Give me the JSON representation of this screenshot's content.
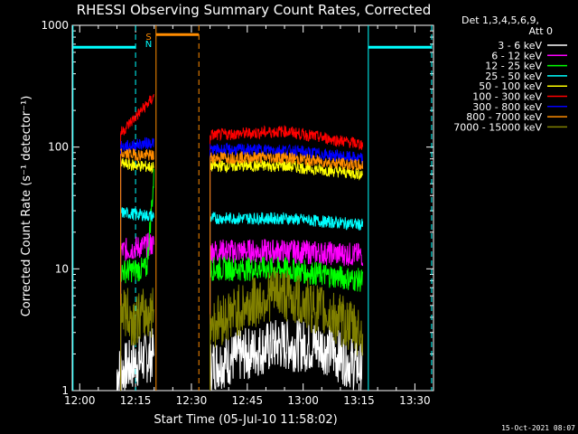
{
  "chart_data": {
    "type": "line",
    "title": "RHESSI Observing Summary Count Rates, Corrected",
    "xlabel": "Start Time (05-Jul-10 11:58:02)",
    "ylabel": "Corrected Count Rate (s⁻¹ detector⁻¹)",
    "ylog": true,
    "ylim": [
      1,
      1000
    ],
    "xlim_minutes_after_1158": [
      0,
      97
    ],
    "x_ticks": [
      "12:00",
      "12:15",
      "12:30",
      "12:45",
      "13:00",
      "13:15",
      "13:30"
    ],
    "y_ticks": [
      "1",
      "10",
      "100",
      "1000"
    ],
    "legend_header": [
      "Det 1,3,4,5,6,9,",
      "Att 0"
    ],
    "legend_position": "right",
    "series": [
      {
        "name": "3 - 6 keV",
        "color": "#ffffff",
        "segments": [
          [
            [
              12,
              1.4
            ],
            [
              17,
              1.7
            ],
            [
              22,
              2.0
            ]
          ],
          [
            [
              37,
              1.6
            ],
            [
              55,
              2.4
            ],
            [
              67,
              2.3
            ],
            [
              78,
              1.5
            ]
          ]
        ]
      },
      {
        "name": "6 - 12 keV",
        "color": "#ff00ff",
        "segments": [
          [
            [
              13,
              14
            ],
            [
              22,
              16
            ]
          ],
          [
            [
              37,
              14
            ],
            [
              57,
              14
            ],
            [
              78,
              13
            ]
          ]
        ]
      },
      {
        "name": "12 - 25 keV",
        "color": "#00ff00",
        "segments": [
          [
            [
              13,
              9.5
            ],
            [
              20,
              10
            ],
            [
              22,
              60
            ]
          ],
          [
            [
              37,
              10
            ],
            [
              57,
              10
            ],
            [
              78,
              8
            ]
          ]
        ]
      },
      {
        "name": "25 - 50 keV",
        "color": "#00ffff",
        "segments": [
          [
            [
              13,
              29
            ],
            [
              22,
              27
            ]
          ],
          [
            [
              37,
              26
            ],
            [
              57,
              26
            ],
            [
              78,
              23
            ]
          ]
        ]
      },
      {
        "name": "50 - 100 keV",
        "color": "#ffff00",
        "segments": [
          [
            [
              13,
              73
            ],
            [
              22,
              68
            ]
          ],
          [
            [
              37,
              70
            ],
            [
              57,
              70
            ],
            [
              78,
              60
            ]
          ]
        ]
      },
      {
        "name": "100 - 300 keV",
        "color": "#ff0000",
        "segments": [
          [
            [
              13,
              130
            ],
            [
              22,
              260
            ]
          ],
          [
            [
              37,
              125
            ],
            [
              57,
              135
            ],
            [
              78,
              105
            ]
          ]
        ]
      },
      {
        "name": "300 - 800 keV",
        "color": "#0000ff",
        "segments": [
          [
            [
              13,
              100
            ],
            [
              22,
              110
            ]
          ],
          [
            [
              37,
              95
            ],
            [
              57,
              95
            ],
            [
              78,
              80
            ]
          ]
        ]
      },
      {
        "name": "800 - 7000 keV",
        "color": "#ff8c00",
        "segments": [
          [
            [
              13,
              88
            ],
            [
              22,
              85
            ]
          ],
          [
            [
              37,
              82
            ],
            [
              57,
              82
            ],
            [
              78,
              70
            ]
          ]
        ]
      },
      {
        "name": "7000 - 15000 keV",
        "color": "#808000",
        "segments": [
          [
            [
              13,
              5.0
            ],
            [
              16,
              3.8
            ],
            [
              22,
              4.5
            ]
          ],
          [
            [
              37,
              3.5
            ],
            [
              55,
              6.5
            ],
            [
              67,
              4.5
            ],
            [
              78,
              3.0
            ]
          ]
        ]
      }
    ],
    "annotations": [
      {
        "text": "S",
        "color": "#ff8c00"
      },
      {
        "text": "N",
        "color": "#00ffff"
      }
    ],
    "timestamp": "15-Oct-2021 08:07"
  }
}
